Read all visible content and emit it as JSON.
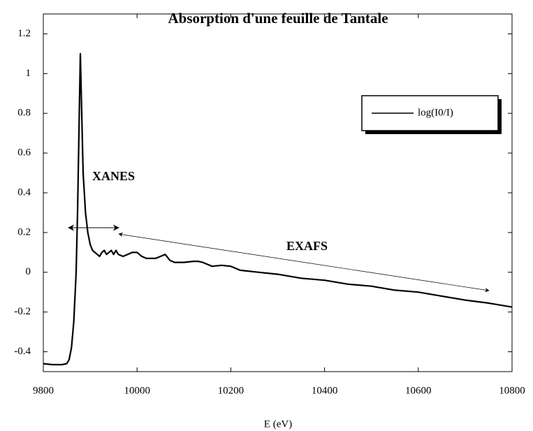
{
  "chart_data": {
    "type": "line",
    "title": "Absorption d'une feuille de Tantale",
    "x_label": "E (eV)",
    "annotations": [
      "XANES",
      "EXAFS"
    ],
    "legend": "upper right",
    "x": [
      9800,
      9820,
      9840,
      9850,
      9855,
      9860,
      9865,
      9870,
      9873,
      9876,
      9879,
      9882,
      9885,
      9890,
      9895,
      9900,
      9905,
      9910,
      9915,
      9920,
      9925,
      9930,
      9935,
      9940,
      9945,
      9950,
      9955,
      9960,
      9970,
      9980,
      9990,
      10000,
      10010,
      10020,
      10040,
      10050,
      10060,
      10070,
      10080,
      10100,
      10120,
      10130,
      10140,
      10160,
      10180,
      10200,
      10220,
      10260,
      10300,
      10350,
      10400,
      10450,
      10500,
      10550,
      10600,
      10650,
      10700,
      10750,
      10800
    ],
    "series": [
      {
        "name": "log(I0/I)",
        "color": "#000000",
        "values": [
          -0.46,
          -0.465,
          -0.465,
          -0.46,
          -0.44,
          -0.38,
          -0.25,
          0.0,
          0.3,
          0.7,
          1.1,
          0.8,
          0.5,
          0.3,
          0.2,
          0.14,
          0.11,
          0.1,
          0.09,
          0.08,
          0.1,
          0.11,
          0.09,
          0.1,
          0.11,
          0.09,
          0.11,
          0.09,
          0.08,
          0.09,
          0.1,
          0.1,
          0.08,
          0.07,
          0.07,
          0.08,
          0.09,
          0.06,
          0.05,
          0.05,
          0.055,
          0.055,
          0.05,
          0.03,
          0.035,
          0.03,
          0.01,
          0.0,
          -0.01,
          -0.03,
          -0.04,
          -0.06,
          -0.07,
          -0.09,
          -0.1,
          -0.12,
          -0.14,
          -0.155,
          -0.175
        ]
      }
    ],
    "xlim": [
      9800,
      10800
    ],
    "xticks": [
      9800,
      10000,
      10200,
      10400,
      10600,
      10800
    ],
    "ylim": [
      -0.5,
      1.3
    ],
    "yticks": [
      -0.4,
      -0.2,
      0,
      0.2,
      0.4,
      0.6,
      0.8,
      1,
      1.2
    ]
  }
}
